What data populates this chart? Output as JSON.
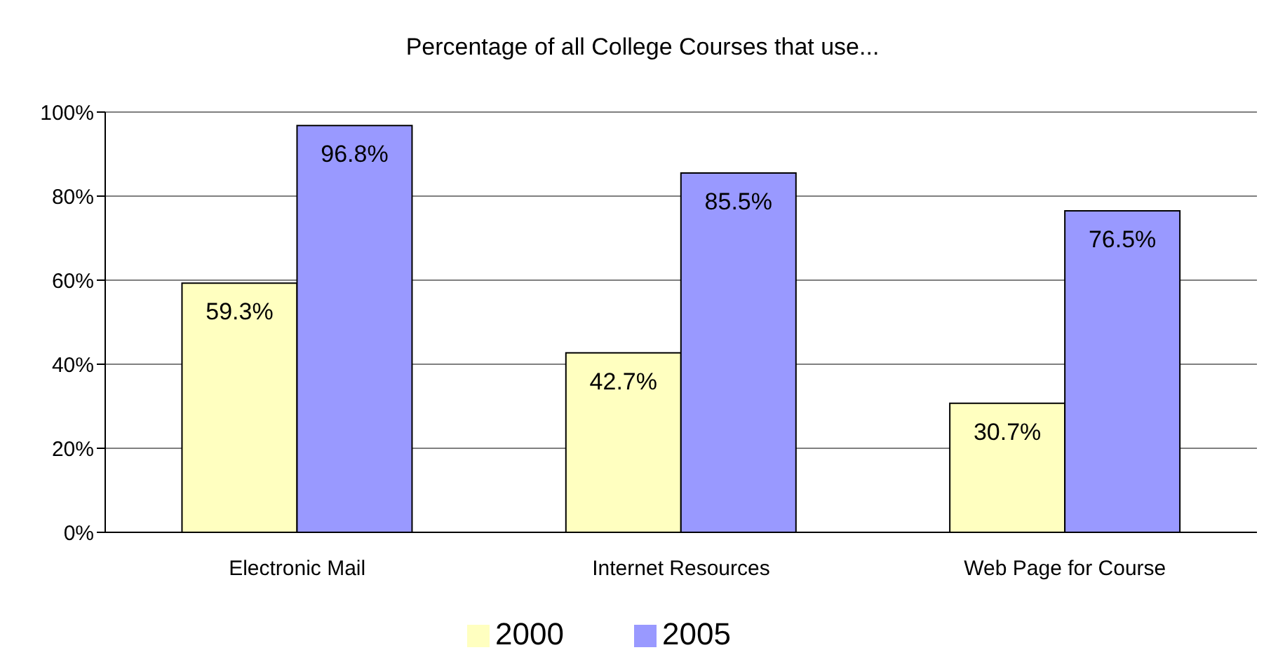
{
  "chart_data": {
    "type": "bar",
    "title": "Percentage of all College Courses that use...",
    "categories": [
      "Electronic Mail",
      "Internet Resources",
      "Web Page for Course"
    ],
    "series": [
      {
        "name": "2000",
        "color": "#ffffc0",
        "values": [
          59.3,
          42.7,
          30.7
        ],
        "value_labels": [
          "59.3%",
          "42.7%",
          "30.7%"
        ]
      },
      {
        "name": "2005",
        "color": "#9999ff",
        "values": [
          96.8,
          85.5,
          76.5
        ],
        "value_labels": [
          "96.8%",
          "85.5%",
          "76.5%"
        ]
      }
    ],
    "ylim": [
      0,
      100
    ],
    "yticks": [
      {
        "value": 0,
        "label": "0%"
      },
      {
        "value": 20,
        "label": "20%"
      },
      {
        "value": 40,
        "label": "40%"
      },
      {
        "value": 60,
        "label": "60%"
      },
      {
        "value": 80,
        "label": "80%"
      },
      {
        "value": 100,
        "label": "100%"
      }
    ],
    "grid": "y",
    "legend": "bottom"
  }
}
